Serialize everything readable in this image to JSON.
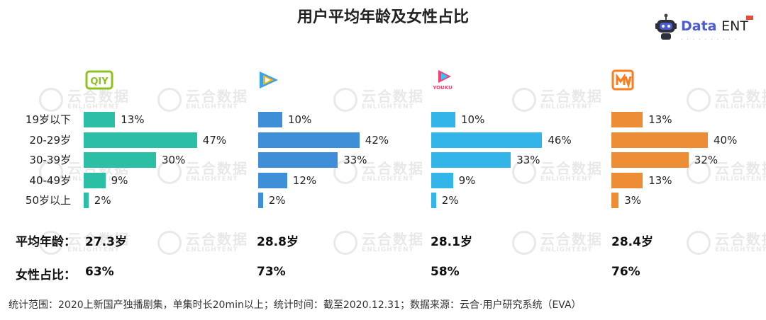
{
  "title": "用户平均年龄及女性占比",
  "logo": {
    "brand": "Data",
    "brand2": "ENT",
    "icon": "robot-icon"
  },
  "watermark": {
    "text": "云合数据",
    "sub": "ENLIGHTENT"
  },
  "chart_data": {
    "type": "bar",
    "orientation": "horizontal",
    "categories": [
      "19岁以下",
      "20-29岁",
      "30-39岁",
      "40-49岁",
      "50岁以上"
    ],
    "series": [
      {
        "platform_icon": "iqiyi-logo-icon",
        "color": "#2dbfa6",
        "values": [
          13,
          47,
          30,
          9,
          2
        ],
        "labels": [
          "13%",
          "47%",
          "30%",
          "9%",
          "2%"
        ]
      },
      {
        "platform_icon": "tencent-video-logo-icon",
        "color": "#3f8fd8",
        "values": [
          10,
          42,
          33,
          12,
          2
        ],
        "labels": [
          "10%",
          "42%",
          "33%",
          "12%",
          "2%"
        ]
      },
      {
        "platform_icon": "youku-logo-icon",
        "color": "#33b5ea",
        "values": [
          10,
          46,
          33,
          9,
          2
        ],
        "labels": [
          "10%",
          "46%",
          "33%",
          "9%",
          "2%"
        ]
      },
      {
        "platform_icon": "mango-tv-logo-icon",
        "color": "#ec8c35",
        "values": [
          13,
          40,
          32,
          13,
          3
        ],
        "labels": [
          "13%",
          "40%",
          "32%",
          "13%",
          "3%"
        ]
      }
    ],
    "unit": "%"
  },
  "stats": {
    "avg_age_label": "平均年龄：",
    "female_label": "女性占比：",
    "avg_age": [
      "27.3岁",
      "28.8岁",
      "28.1岁",
      "28.4岁"
    ],
    "female_ratio": [
      "63%",
      "73%",
      "58%",
      "76%"
    ]
  },
  "footer": "统计范围：2020上新国产独播剧集，单集时长20min以上；统计时间：截至2020.12.31；数据来源：云合·用户研究系统（EVA）",
  "youku_text": "YOUKU"
}
